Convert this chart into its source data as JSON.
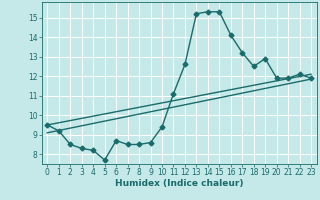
{
  "xlabel": "Humidex (Indice chaleur)",
  "bg_color": "#c5e8e8",
  "grid_color": "#ffffff",
  "line_color": "#1a6b6b",
  "xlim": [
    -0.5,
    23.5
  ],
  "ylim": [
    7.5,
    15.8
  ],
  "xticks": [
    0,
    1,
    2,
    3,
    4,
    5,
    6,
    7,
    8,
    9,
    10,
    11,
    12,
    13,
    14,
    15,
    16,
    17,
    18,
    19,
    20,
    21,
    22,
    23
  ],
  "yticks": [
    8,
    9,
    10,
    11,
    12,
    13,
    14,
    15
  ],
  "line1_x": [
    0,
    1,
    2,
    3,
    4,
    5,
    6,
    7,
    8,
    9,
    10,
    11,
    12,
    13,
    14,
    15,
    16,
    17,
    18,
    19,
    20,
    21,
    22,
    23
  ],
  "line1_y": [
    9.5,
    9.2,
    8.5,
    8.3,
    8.2,
    7.7,
    8.7,
    8.5,
    8.5,
    8.6,
    9.4,
    11.1,
    12.6,
    15.2,
    15.3,
    15.3,
    14.1,
    13.2,
    12.5,
    12.9,
    11.9,
    11.9,
    12.1,
    11.9
  ],
  "line2_x": [
    0,
    23
  ],
  "line2_y": [
    9.5,
    12.1
  ],
  "line3_x": [
    0,
    23
  ],
  "line3_y": [
    9.1,
    11.85
  ],
  "marker_size": 2.5,
  "marker_style": "D",
  "line_width": 1.0,
  "tick_fontsize": 5.5,
  "label_fontsize": 6.5
}
